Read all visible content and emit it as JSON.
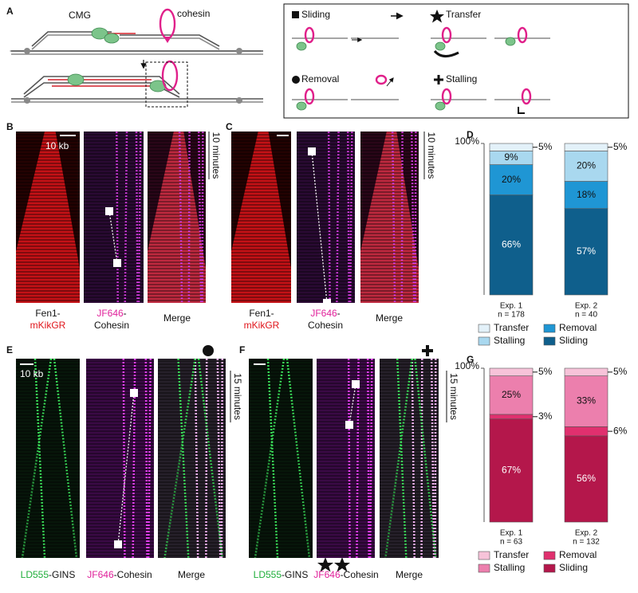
{
  "panel_labels": [
    "A",
    "B",
    "C",
    "D",
    "E",
    "F",
    "G"
  ],
  "panel_a": {
    "cmg": "CMG",
    "cohesin": "cohesin",
    "legend": {
      "sliding": "Sliding",
      "transfer": "Transfer",
      "removal": "Removal",
      "stalling": "Stalling"
    }
  },
  "panel_b": {
    "scale": "10 kb",
    "time": "10 minutes",
    "channels": [
      {
        "line1": "Fen1-",
        "line2": "mKikGR"
      },
      {
        "fluor": "JF646",
        "line1": "-",
        "line2": "Cohesin"
      },
      {
        "line1": "Merge"
      }
    ]
  },
  "panel_c": {
    "time": "10 minutes",
    "channels": [
      {
        "line1": "Fen1-",
        "line2": "mKikGR"
      },
      {
        "fluor": "JF646",
        "line1": "-",
        "line2": "Cohesin"
      },
      {
        "line1": "Merge"
      }
    ]
  },
  "panel_e": {
    "scale": "10 kb",
    "time": "15 minutes",
    "channels": [
      {
        "fluor": "LD555",
        "label": "-GINS"
      },
      {
        "fluor": "JF646",
        "label": "-Cohesin"
      },
      {
        "label": "Merge"
      }
    ]
  },
  "panel_f": {
    "time": "15 minutes",
    "channels": [
      {
        "fluor": "LD555",
        "label": "-GINS"
      },
      {
        "fluor": "JF646",
        "label": "-Cohesin"
      },
      {
        "label": "Merge"
      }
    ]
  },
  "chart_data": [
    {
      "type": "bar",
      "stacked": true,
      "categories": [
        "Exp. 1",
        "Exp. 2"
      ],
      "category_notes": [
        "n = 178",
        "n = 40"
      ],
      "ylim": [
        0,
        100
      ],
      "yticks": [
        {
          "value": 100,
          "label": "100%"
        }
      ],
      "series": [
        {
          "name": "Sliding",
          "color": "#0f5f8c",
          "values": [
            66,
            57
          ],
          "value_labels": [
            "66%",
            "57%"
          ]
        },
        {
          "name": "Removal",
          "color": "#1f96d4",
          "values": [
            20,
            18
          ],
          "value_labels": [
            "20%",
            "18%"
          ]
        },
        {
          "name": "Stalling",
          "color": "#a9d8ef",
          "values": [
            9,
            20
          ],
          "value_labels": [
            "9%",
            "20%"
          ]
        },
        {
          "name": "Transfer",
          "color": "#e3f1f9",
          "values": [
            5,
            5
          ],
          "value_labels": [
            "5%",
            "5%"
          ]
        }
      ]
    },
    {
      "type": "bar",
      "stacked": true,
      "categories": [
        "Exp. 1",
        "Exp. 2"
      ],
      "category_notes": [
        "n = 63",
        "n = 132"
      ],
      "ylim": [
        0,
        100
      ],
      "yticks": [
        {
          "value": 100,
          "label": "100%"
        }
      ],
      "series": [
        {
          "name": "Sliding",
          "color": "#b4174b",
          "values": [
            67,
            56
          ],
          "value_labels": [
            "67%",
            "56%"
          ]
        },
        {
          "name": "Removal",
          "color": "#e0306e",
          "values": [
            3,
            6
          ],
          "value_labels": [
            "3%",
            "6%"
          ]
        },
        {
          "name": "Stalling",
          "color": "#ec7fad",
          "values": [
            25,
            33
          ],
          "value_labels": [
            "25%",
            "33%"
          ]
        },
        {
          "name": "Transfer",
          "color": "#f7c3d9",
          "values": [
            5,
            5
          ],
          "value_labels": [
            "5%",
            "5%"
          ]
        }
      ]
    }
  ]
}
